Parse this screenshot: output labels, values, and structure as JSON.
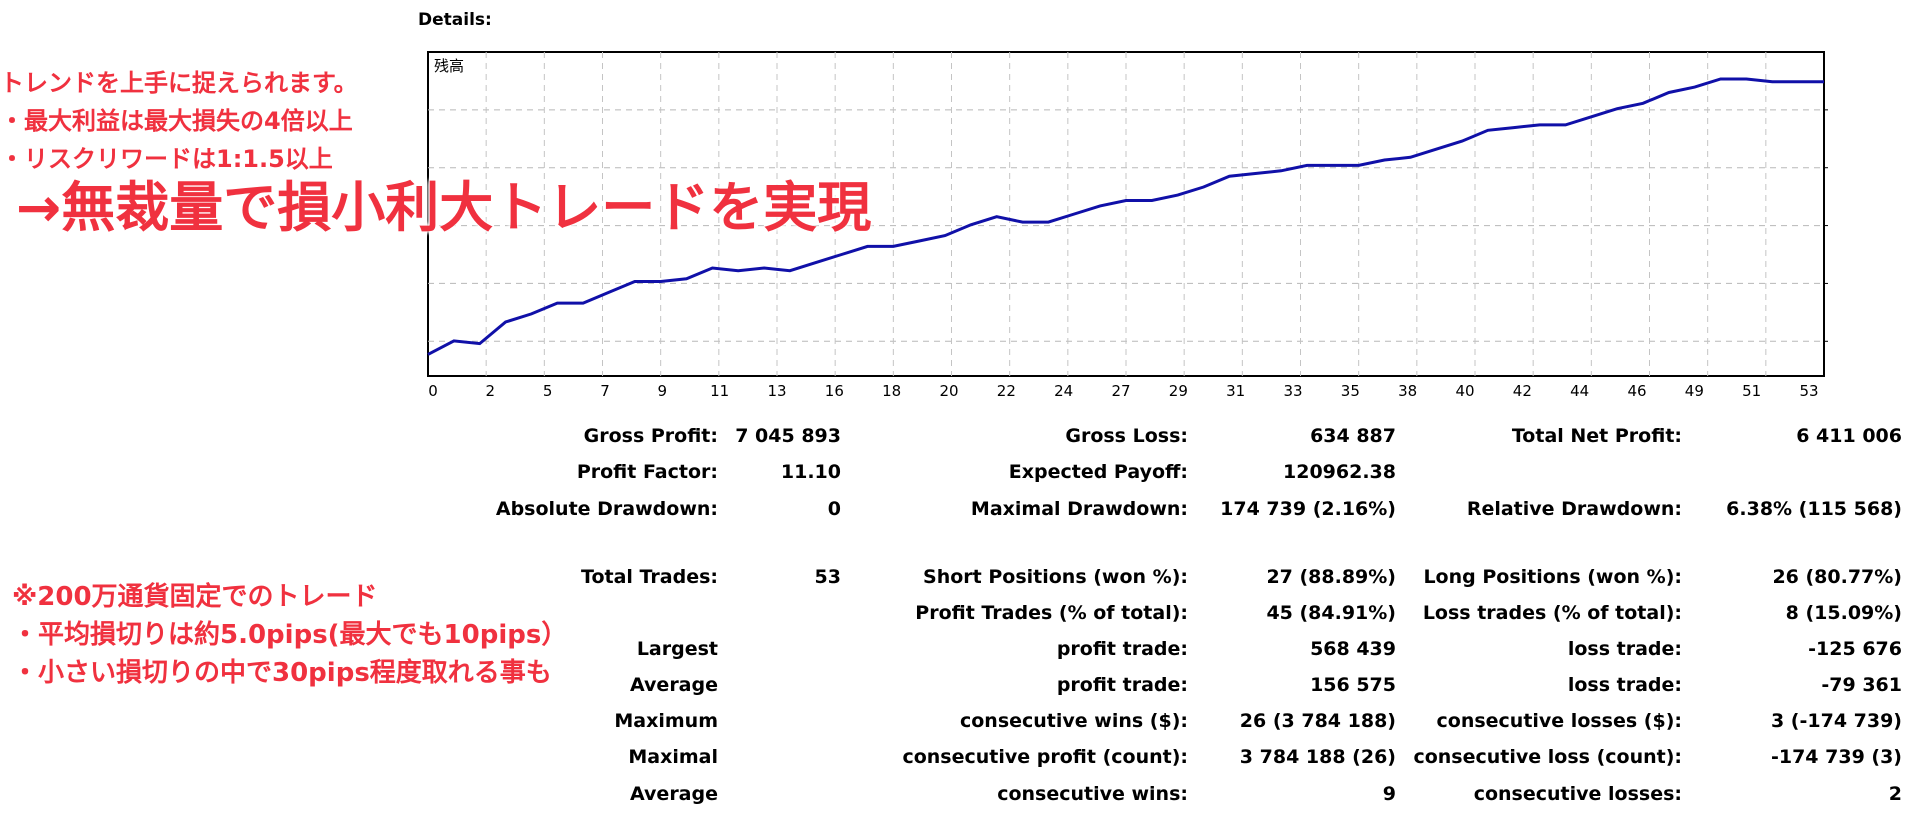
{
  "header": {
    "details_label": "Details:"
  },
  "chart_data": {
    "type": "line",
    "title": "残高",
    "xlabel": "",
    "ylabel": "",
    "x_ticks": [
      "0",
      "2",
      "5",
      "7",
      "9",
      "11",
      "13",
      "16",
      "18",
      "20",
      "22",
      "24",
      "27",
      "29",
      "31",
      "33",
      "35",
      "38",
      "40",
      "42",
      "44",
      "46",
      "49",
      "51",
      "53"
    ],
    "xlim": [
      0,
      54
    ],
    "grid": true,
    "line_color": "#1010a8",
    "series": [
      {
        "x": [
          0,
          1,
          2,
          3,
          4,
          5,
          6,
          7,
          8,
          9,
          10,
          11,
          12,
          13,
          14,
          15,
          16,
          17,
          18,
          19,
          20,
          21,
          22,
          23,
          24,
          25,
          26,
          27,
          28,
          29,
          30,
          31,
          32,
          33,
          34,
          35,
          36,
          37,
          38,
          39,
          40,
          41,
          42,
          43,
          44,
          45,
          46,
          47,
          48,
          49,
          50,
          51,
          52,
          53,
          54
        ],
        "values": [
          0.03,
          0.08,
          0.07,
          0.15,
          0.18,
          0.22,
          0.22,
          0.26,
          0.3,
          0.3,
          0.31,
          0.35,
          0.34,
          0.35,
          0.34,
          0.37,
          0.4,
          0.43,
          0.43,
          0.45,
          0.47,
          0.51,
          0.54,
          0.52,
          0.52,
          0.55,
          0.58,
          0.6,
          0.6,
          0.62,
          0.65,
          0.69,
          0.7,
          0.71,
          0.73,
          0.73,
          0.73,
          0.75,
          0.76,
          0.79,
          0.82,
          0.86,
          0.87,
          0.88,
          0.88,
          0.91,
          0.94,
          0.96,
          1.0,
          1.02,
          1.05,
          1.05,
          1.04,
          1.04,
          1.04
        ]
      }
    ]
  },
  "stats": [
    {
      "label": "Gross Profit:",
      "value": "7 045 893",
      "col": 0,
      "row": 0
    },
    {
      "label": "Gross Loss:",
      "value": "634 887",
      "col": 1,
      "row": 0
    },
    {
      "label": "Total Net Profit:",
      "value": "6 411 006",
      "col": 2,
      "row": 0
    },
    {
      "label": "Profit Factor:",
      "value": "11.10",
      "col": 0,
      "row": 1
    },
    {
      "label": "Expected Payoff:",
      "value": "120962.38",
      "col": 1,
      "row": 1
    },
    {
      "label": "Absolute Drawdown:",
      "value": "0",
      "col": 0,
      "row": 2
    },
    {
      "label": "Maximal Drawdown:",
      "value": "174 739 (2.16%)",
      "col": 1,
      "row": 2
    },
    {
      "label": "Relative Drawdown:",
      "value": "6.38% (115 568)",
      "col": 2,
      "row": 2
    },
    {
      "label": "Total Trades:",
      "value": "53",
      "col": 0,
      "row": 3
    },
    {
      "label": "Short Positions (won %):",
      "value": "27 (88.89%)",
      "col": 1,
      "row": 3
    },
    {
      "label": "Long Positions (won %):",
      "value": "26 (80.77%)",
      "col": 2,
      "row": 3
    },
    {
      "label": "Profit Trades (% of total):",
      "value": "45 (84.91%)",
      "col": 1,
      "row": 4
    },
    {
      "label": "Loss trades (% of total):",
      "value": "8 (15.09%)",
      "col": 2,
      "row": 4
    },
    {
      "label": "Largest",
      "value": "",
      "col": 0,
      "row": 5
    },
    {
      "label": "profit trade:",
      "value": "568 439",
      "col": 1,
      "row": 5
    },
    {
      "label": "loss trade:",
      "value": "-125 676",
      "col": 2,
      "row": 5
    },
    {
      "label": "Average",
      "value": "",
      "col": 0,
      "row": 6
    },
    {
      "label": "profit trade:",
      "value": "156 575",
      "col": 1,
      "row": 6
    },
    {
      "label": "loss trade:",
      "value": "-79 361",
      "col": 2,
      "row": 6
    },
    {
      "label": "Maximum",
      "value": "",
      "col": 0,
      "row": 7
    },
    {
      "label": "consecutive wins ($):",
      "value": "26 (3 784 188)",
      "col": 1,
      "row": 7
    },
    {
      "label": "consecutive losses ($):",
      "value": "3 (-174 739)",
      "col": 2,
      "row": 7
    },
    {
      "label": "Maximal",
      "value": "",
      "col": 0,
      "row": 8
    },
    {
      "label": "consecutive profit (count):",
      "value": "3 784 188 (26)",
      "col": 1,
      "row": 8
    },
    {
      "label": "consecutive loss (count):",
      "value": "-174 739 (3)",
      "col": 2,
      "row": 8
    },
    {
      "label": "Average",
      "value": "",
      "col": 0,
      "row": 9
    },
    {
      "label": "consecutive wins:",
      "value": "9",
      "col": 1,
      "row": 9
    },
    {
      "label": "consecutive losses:",
      "value": "2",
      "col": 2,
      "row": 9
    }
  ],
  "annotations": {
    "top_line1": "トレンドを上手に捉えられます。",
    "top_line2": "・最大利益は最大損失の4倍以上",
    "top_line3": "・リスクリワードは1:1.5以上",
    "headline": "→無裁量で損小利大トレードを実現",
    "bottom_line1": "※200万通貨固定でのトレード",
    "bottom_line2": "・平均損切りは約5.0pips(最大でも10pips）",
    "bottom_line3": "・小さい損切りの中で30pips程度取れる事も",
    "color": "#f0313f"
  }
}
